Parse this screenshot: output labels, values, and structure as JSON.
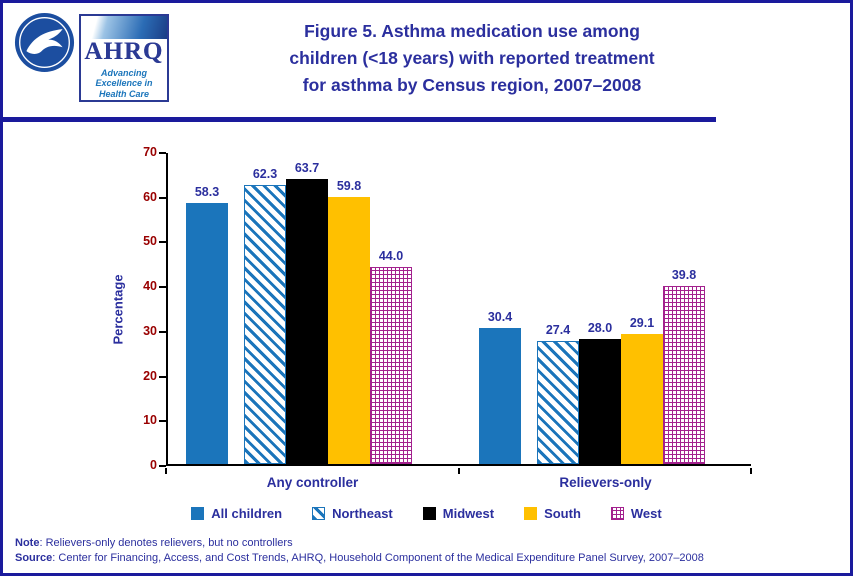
{
  "header": {
    "title_lines": [
      "Figure 5. Asthma medication use among",
      "children (<18 years) with reported treatment",
      "for asthma by Census region, 2007–2008"
    ]
  },
  "logos": {
    "hhs_icon": "hhs-eagle-seal",
    "ahrq_word": "AHRQ",
    "ahrq_tagline": "Advancing Excellence in Health Care"
  },
  "colors": {
    "navy_text": "#2B2F9E",
    "axis_tick_red": "#990000",
    "border_navy": "#1A1A9C",
    "axis_black": "#000000"
  },
  "chart_data": {
    "type": "bar",
    "title": "Figure 5. Asthma medication use among children (<18 years) with reported treatment for asthma by Census region, 2007–2008",
    "categories": [
      "Any controller",
      "Relievers-only"
    ],
    "series": [
      {
        "name": "All children",
        "values": [
          58.3,
          30.4
        ],
        "labels": [
          "58.3",
          "30.4"
        ],
        "color": "#1B75BB",
        "pattern": "solid"
      },
      {
        "name": "Northeast",
        "values": [
          62.3,
          27.4
        ],
        "labels": [
          "62.3",
          "27.4"
        ],
        "color": "#1B75BB",
        "pattern": "diagonal"
      },
      {
        "name": "Midwest",
        "values": [
          63.7,
          28.0
        ],
        "labels": [
          "63.7",
          "28.0"
        ],
        "color": "#000000",
        "pattern": "solid"
      },
      {
        "name": "South",
        "values": [
          59.8,
          29.1
        ],
        "labels": [
          "59.8",
          "29.1"
        ],
        "color": "#FFC000",
        "pattern": "solid"
      },
      {
        "name": "West",
        "values": [
          44.0,
          39.8
        ],
        "labels": [
          "44.0",
          "39.8"
        ],
        "color": "#A3218E",
        "pattern": "lattice"
      }
    ],
    "xlabel": "",
    "ylabel": "Percentage",
    "ylim": [
      0,
      70
    ],
    "yticks": [
      0,
      10,
      20,
      30,
      40,
      50,
      60,
      70
    ],
    "grid": false,
    "legend_position": "bottom"
  },
  "notes": {
    "note_label": "Note",
    "note_rest": ": Relievers-only denotes relievers, but no controllers",
    "source_label": "Source",
    "source_rest": ": Center for Financing, Access, and Cost Trends, AHRQ,  Household Component of the Medical Expenditure Panel Survey,  2007–2008"
  }
}
